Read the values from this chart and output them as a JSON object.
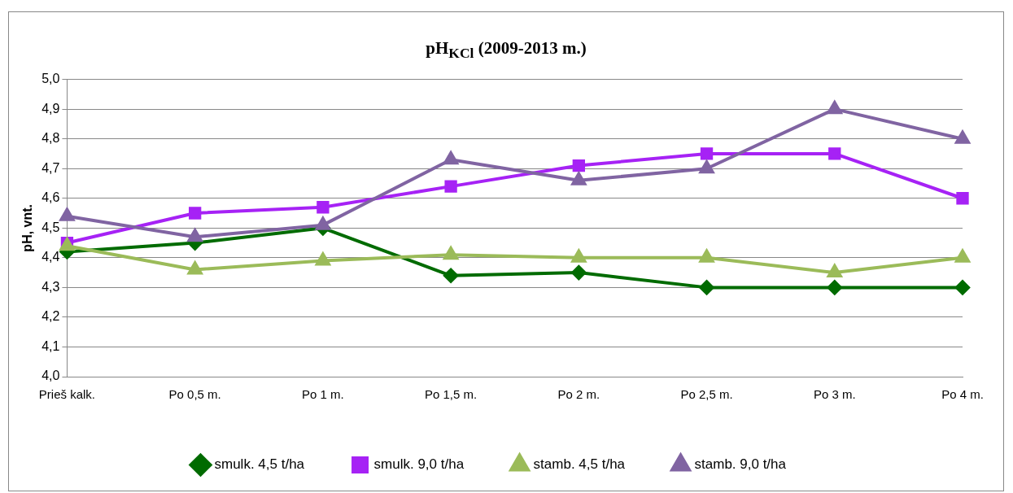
{
  "chart_data": {
    "type": "line",
    "title": "pH$_{KCl}$ (2009-2013 m.)",
    "ylabel": "pH, vnt.",
    "categories": [
      "Prieš kalk.",
      "Po 0,5 m.",
      "Po 1 m.",
      "Po 1,5 m.",
      "Po 2 m.",
      "Po 2,5 m.",
      "Po 3 m.",
      "Po 4 m."
    ],
    "series": [
      {
        "name": "smulk. 4,5 t/ha",
        "color": "#006b00",
        "marker": "diamond",
        "values": [
          4.42,
          4.45,
          4.5,
          4.34,
          4.35,
          4.3,
          4.3,
          4.3
        ]
      },
      {
        "name": "smulk. 9,0 t/ha",
        "color": "#a622f5",
        "marker": "square",
        "values": [
          4.45,
          4.55,
          4.57,
          4.64,
          4.71,
          4.75,
          4.75,
          4.6
        ]
      },
      {
        "name": "stamb. 4,5 t/ha",
        "color": "#9bbb59",
        "marker": "triangle",
        "values": [
          4.44,
          4.36,
          4.39,
          4.41,
          4.4,
          4.4,
          4.35,
          4.4
        ]
      },
      {
        "name": "stamb. 9,0 t/ha",
        "color": "#8064a2",
        "marker": "triangle",
        "values": [
          4.54,
          4.47,
          4.51,
          4.73,
          4.66,
          4.7,
          4.9,
          4.8
        ]
      }
    ],
    "ylim": [
      4.0,
      5.0
    ],
    "yticks": [
      {
        "value": 4.0,
        "label": "4,0"
      },
      {
        "value": 4.1,
        "label": "4,1"
      },
      {
        "value": 4.2,
        "label": "4,2"
      },
      {
        "value": 4.3,
        "label": "4,3"
      },
      {
        "value": 4.4,
        "label": "4,4"
      },
      {
        "value": 4.5,
        "label": "4,5"
      },
      {
        "value": 4.6,
        "label": "4,6"
      },
      {
        "value": 4.7,
        "label": "4,7"
      },
      {
        "value": 4.8,
        "label": "4,8"
      },
      {
        "value": 4.9,
        "label": "4,9"
      },
      {
        "value": 5.0,
        "label": "5,0"
      }
    ],
    "grid": "y",
    "legend": "bottom",
    "line_style": "solid"
  }
}
